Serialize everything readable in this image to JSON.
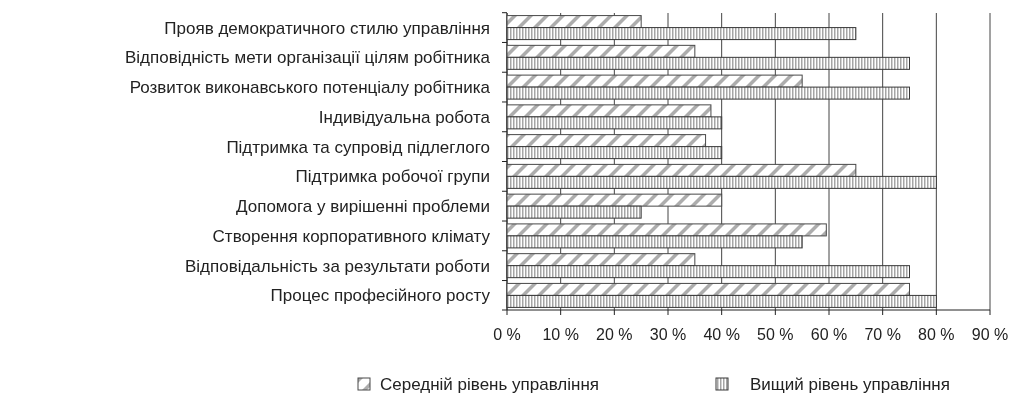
{
  "chart_data": {
    "type": "bar",
    "orientation": "horizontal",
    "categories": [
      "Прояв демократичного стилю управління",
      "Відповідність мети організації цілям робітника",
      "Розвиток виконавського потенціалу робітника",
      "Індивідуальна робота",
      "Підтримка та супровід підлеглого",
      "Підтримка робочої групи",
      "Допомога у вирішенні проблеми",
      "Створення корпоративного клімату",
      "Відповідальність за результати роботи",
      "Процес професійного росту"
    ],
    "series": [
      {
        "name": "Середній рівень управління",
        "color": "#484848",
        "values": [
          25,
          35,
          55,
          38,
          37,
          65,
          40,
          59.5,
          35,
          75
        ]
      },
      {
        "name": "Вищий рівень управління",
        "color": "#383838",
        "values": [
          65,
          75,
          75,
          40,
          40,
          80,
          25,
          55,
          75,
          80
        ]
      }
    ],
    "xlim": [
      0,
      90
    ],
    "xticks": [
      {
        "value": 0,
        "label": "0 %"
      },
      {
        "value": 10,
        "label": "10 %"
      },
      {
        "value": 20,
        "label": "20 %"
      },
      {
        "value": 30,
        "label": "30 %"
      },
      {
        "value": 40,
        "label": "40 %"
      },
      {
        "value": 50,
        "label": "50 %"
      },
      {
        "value": 60,
        "label": "60 %"
      },
      {
        "value": 70,
        "label": "70 %"
      },
      {
        "value": 80,
        "label": "80 %"
      },
      {
        "value": 90,
        "label": "90 %"
      }
    ],
    "grid": "x",
    "legend": "bottom"
  }
}
